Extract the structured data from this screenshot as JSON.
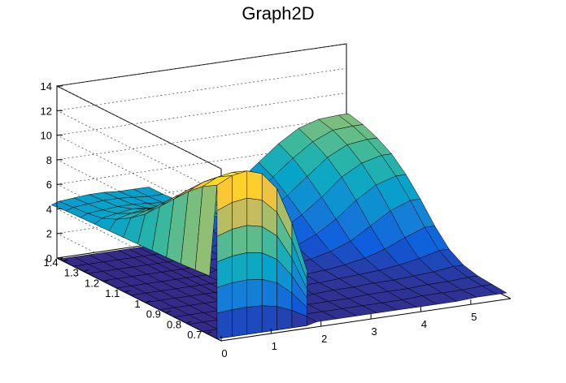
{
  "chart_data": {
    "type": "surface3d",
    "title": "Graph2D",
    "xlabel": "",
    "ylabel": "",
    "zlabel": "",
    "x_ticks": [
      "0",
      "1",
      "2",
      "3",
      "4",
      "5"
    ],
    "y_ticks": [
      "0.7",
      "0.8",
      "0.9",
      "1",
      "1.1",
      "1.2",
      "1.3",
      "1.4"
    ],
    "z_ticks": [
      "0",
      "2",
      "4",
      "6",
      "8",
      "10",
      "12",
      "14"
    ],
    "xlim": [
      0,
      5.8
    ],
    "ylim": [
      0.63,
      1.43
    ],
    "zlim": [
      0,
      14
    ],
    "grid": true,
    "palette": [
      "#352a87",
      "#0f5cdd",
      "#1481d6",
      "#06a4ca",
      "#2eb7a4",
      "#87bf77",
      "#d1bb59",
      "#fec832",
      "#f9fb0e"
    ],
    "surface_rows": [
      {
        "x": 0.0,
        "z": [
          0,
          0,
          0,
          0,
          0,
          0,
          0,
          0,
          0,
          0,
          0,
          0
        ]
      },
      {
        "x": 0.3,
        "z": [
          0,
          0,
          0,
          0,
          0,
          0,
          0,
          0,
          0,
          0,
          0,
          0
        ]
      },
      {
        "x": 0.6,
        "z": [
          0,
          0,
          0,
          0,
          0,
          0,
          0,
          0,
          0,
          0,
          0,
          0
        ]
      },
      {
        "x": 0.9,
        "z": [
          0,
          0,
          0,
          0,
          0,
          0,
          0,
          0,
          0,
          0,
          0,
          0
        ]
      },
      {
        "x": 1.2,
        "z": [
          0,
          0,
          0,
          0,
          0,
          0,
          0,
          0,
          0,
          0,
          0,
          0
        ]
      },
      {
        "x": 1.4,
        "z": [
          0,
          0,
          0,
          0,
          0,
          0,
          0,
          0,
          0,
          0,
          0,
          0
        ]
      },
      {
        "x": 1.6,
        "z": [
          0,
          0,
          0,
          0,
          0,
          0,
          0,
          0,
          0,
          0,
          0,
          0
        ]
      },
      {
        "x": 1.8,
        "z": [
          0,
          0,
          0,
          0,
          0,
          0,
          0,
          0,
          0,
          0,
          0,
          0
        ]
      },
      {
        "x": 2.0,
        "z": [
          0.2,
          0.2,
          0.2,
          0.2,
          0.2,
          0.2,
          0.3,
          0.3,
          0.3,
          0.4,
          0.4,
          0.5
        ]
      },
      {
        "x": 2.4,
        "z": [
          0.2,
          0.2,
          0.2,
          0.2,
          0.2,
          0.3,
          0.3,
          0.4,
          0.5,
          0.6,
          0.7,
          0.8
        ]
      },
      {
        "x": 2.8,
        "z": [
          0.2,
          0.2,
          0.2,
          0.2,
          0.3,
          0.3,
          0.4,
          0.6,
          0.8,
          1.0,
          1.2,
          1.4
        ]
      },
      {
        "x": 3.2,
        "z": [
          0.2,
          0.2,
          0.2,
          0.3,
          0.3,
          0.4,
          0.6,
          0.9,
          1.3,
          1.8,
          2.3,
          2.8
        ]
      },
      {
        "x": 3.6,
        "z": [
          0.2,
          0.2,
          0.3,
          0.3,
          0.4,
          0.5,
          0.8,
          1.3,
          2.0,
          2.8,
          3.5,
          4.2
        ]
      },
      {
        "x": 4.0,
        "z": [
          0.2,
          0.2,
          0.3,
          0.4,
          0.5,
          0.7,
          1.2,
          2.0,
          3.0,
          4.0,
          4.9,
          5.5
        ]
      },
      {
        "x": 4.4,
        "z": [
          0.2,
          0.3,
          0.3,
          0.4,
          0.6,
          1.0,
          1.8,
          3.0,
          4.2,
          5.3,
          6.2,
          6.8
        ]
      },
      {
        "x": 4.8,
        "z": [
          0.2,
          0.3,
          0.4,
          0.5,
          0.8,
          1.5,
          2.8,
          4.3,
          5.6,
          6.6,
          7.3,
          7.8
        ]
      },
      {
        "x": 5.2,
        "z": [
          0.3,
          0.3,
          0.4,
          0.6,
          1.1,
          2.2,
          3.8,
          5.3,
          6.5,
          7.4,
          8.0,
          8.3
        ]
      },
      {
        "x": 5.6,
        "z": [
          0.3,
          0.4,
          0.5,
          0.8,
          1.5,
          2.8,
          4.4,
          5.8,
          6.9,
          7.6,
          8.1,
          8.4
        ]
      },
      {
        "x": 5.8,
        "z": [
          0.3,
          0.4,
          0.5,
          0.8,
          1.5,
          2.8,
          4.4,
          5.8,
          6.9,
          7.6,
          8.1,
          8.4
        ]
      }
    ],
    "surface_y": [
      0.65,
      0.72,
      0.79,
      0.86,
      0.93,
      1.0,
      1.07,
      1.14,
      1.21,
      1.28,
      1.35,
      1.42
    ],
    "ridge_rows": [
      {
        "x": -0.15,
        "z": [
          5.2,
          5.1,
          5.0,
          4.95,
          4.9,
          4.85,
          4.8,
          4.75,
          4.7,
          4.65,
          4.6,
          4.5
        ]
      },
      {
        "x": 0.0,
        "z": [
          12.5,
          11.8,
          10.8,
          9.6,
          8.4,
          7.2,
          6.3,
          5.6,
          5.1,
          4.9,
          4.8,
          4.7
        ]
      },
      {
        "x": 0.3,
        "z": [
          13.1,
          12.4,
          11.4,
          10.2,
          9.0,
          7.8,
          6.7,
          5.9,
          5.3,
          5.0,
          4.9,
          4.8
        ]
      },
      {
        "x": 0.6,
        "z": [
          13.3,
          12.6,
          11.6,
          10.4,
          9.2,
          8.0,
          6.9,
          6.1,
          5.5,
          5.1,
          5.0,
          4.9
        ]
      },
      {
        "x": 0.9,
        "z": [
          12.9,
          12.2,
          11.2,
          10.0,
          8.8,
          7.6,
          6.6,
          5.9,
          5.4,
          5.1,
          5.0,
          4.9
        ]
      },
      {
        "x": 1.2,
        "z": [
          11.5,
          10.8,
          9.9,
          8.9,
          7.9,
          7.0,
          6.2,
          5.6,
          5.2,
          5.0,
          4.9,
          4.8
        ]
      },
      {
        "x": 1.5,
        "z": [
          8.5,
          8.2,
          7.8,
          7.3,
          6.8,
          6.3,
          5.8,
          5.4,
          5.1,
          4.9,
          4.8,
          4.8
        ]
      },
      {
        "x": 1.8,
        "z": [
          4.5,
          4.8,
          5.0,
          5.2,
          5.3,
          5.3,
          5.2,
          5.1,
          5.0,
          4.9,
          4.8,
          4.8
        ]
      }
    ],
    "cliff_x": [
      0.0,
      0.3,
      0.6,
      0.9,
      1.2,
      1.4
    ]
  }
}
